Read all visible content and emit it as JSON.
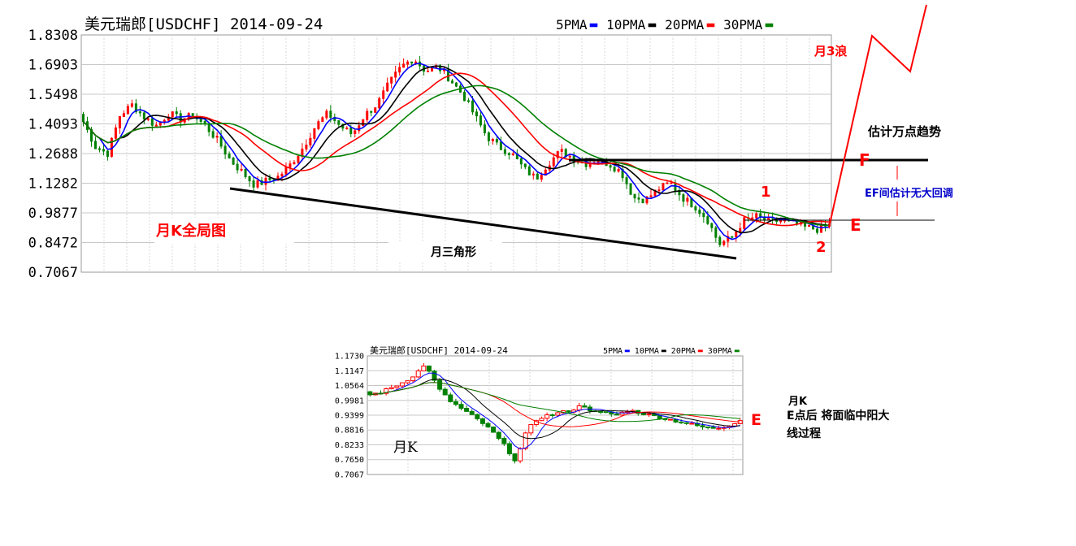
{
  "chart_data": [
    {
      "type": "candlestick",
      "title": "美元瑞郎[USDCHF] 2014-09-24",
      "y_ticks": [
        "1.8308",
        "1.6903",
        "1.5498",
        "1.4093",
        "1.2688",
        "1.1282",
        "0.9877",
        "0.8472",
        "0.7067"
      ],
      "ylim": [
        0.7067,
        1.8308
      ],
      "legend": [
        "5PMA",
        "10PMA",
        "20PMA",
        "30PMA"
      ],
      "legend_colors": [
        "#0000ff",
        "#000000",
        "#ff0000",
        "#008000"
      ],
      "price_path": [
        1.42,
        1.3,
        1.27,
        1.45,
        1.5,
        1.44,
        1.4,
        1.46,
        1.43,
        1.45,
        1.4,
        1.33,
        1.24,
        1.18,
        1.12,
        1.14,
        1.16,
        1.22,
        1.3,
        1.4,
        1.46,
        1.4,
        1.36,
        1.45,
        1.5,
        1.6,
        1.68,
        1.72,
        1.66,
        1.68,
        1.62,
        1.55,
        1.45,
        1.35,
        1.3,
        1.27,
        1.2,
        1.15,
        1.22,
        1.28,
        1.25,
        1.22,
        1.24,
        1.22,
        1.18,
        1.06,
        1.05,
        1.1,
        1.13,
        1.06,
        1.02,
        0.96,
        0.84,
        0.87,
        0.95,
        0.97,
        0.95,
        0.95,
        0.94,
        0.92,
        0.91,
        0.93
      ],
      "annotations": {
        "wave": "月3浪",
        "trend": "估计万点趋势",
        "f": "F",
        "e": "E",
        "ef_note": "EF间估计无大回调",
        "one": "1",
        "two": "2",
        "panorama": "月K全局图",
        "triangle": "月三角形"
      }
    },
    {
      "type": "candlestick",
      "title": "美元瑞郎[USDCHF] 2014-09-24",
      "y_ticks": [
        "1.1730",
        "1.1147",
        "1.0564",
        "0.9981",
        "0.9399",
        "0.8816",
        "0.8233",
        "0.7650",
        "0.7067"
      ],
      "ylim": [
        0.7067,
        1.173
      ],
      "legend": [
        "5PMA",
        "10PMA",
        "20PMA",
        "30PMA"
      ],
      "legend_colors": [
        "#0000ff",
        "#000000",
        "#ff0000",
        "#008000"
      ],
      "price_path": [
        1.02,
        1.03,
        1.05,
        1.07,
        1.1,
        1.14,
        1.05,
        1.0,
        0.97,
        0.94,
        0.91,
        0.87,
        0.82,
        0.76,
        0.88,
        0.93,
        0.94,
        0.95,
        0.96,
        0.98,
        0.95,
        0.95,
        0.94,
        0.96,
        0.95,
        0.94,
        0.93,
        0.92,
        0.91,
        0.9,
        0.89,
        0.89,
        0.9,
        0.92
      ],
      "annotations": {
        "e": "E",
        "label": "月K",
        "note_line1": "月K",
        "note_line2": "E点后 将面临中阳大",
        "note_line3": "线过程"
      }
    }
  ]
}
